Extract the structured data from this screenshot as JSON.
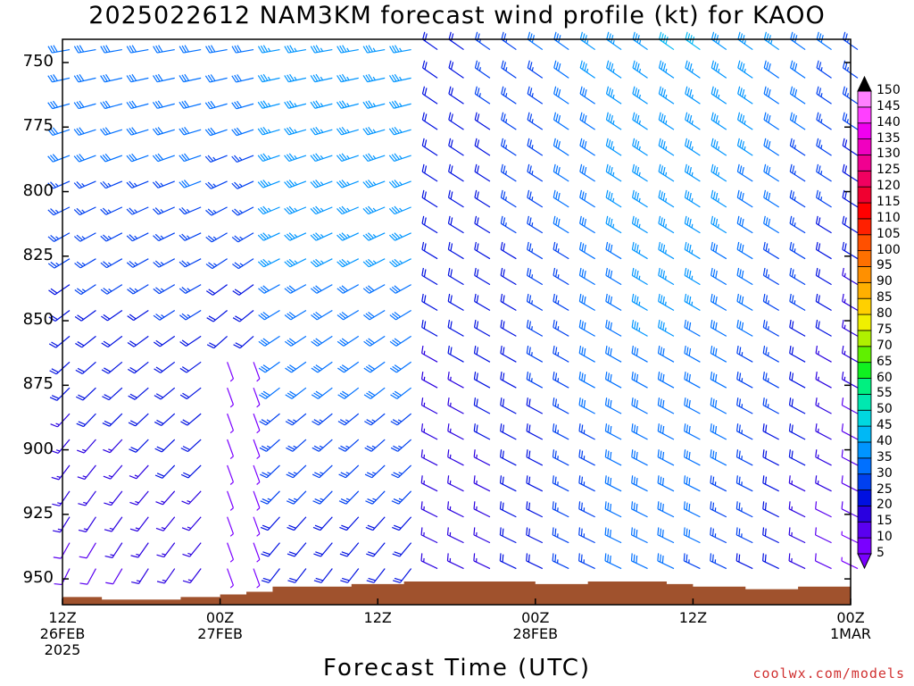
{
  "title": "2025022612 NAM3KM forecast wind profile (kt) for KAOO",
  "credit": "coolwx.com/models",
  "chart_data": {
    "type": "wind-barb-time-height",
    "title": "2025022612 NAM3KM forecast wind profile (kt) for KAOO",
    "xlabel": "Forecast Time (UTC)",
    "ylabel": "",
    "y_ticks": [
      750,
      775,
      800,
      825,
      850,
      875,
      900,
      925,
      950
    ],
    "ylim": [
      741,
      960
    ],
    "y_inverted": true,
    "x_range_hours": [
      0,
      60
    ],
    "x_ticks": [
      {
        "hour": 0,
        "lines": [
          "12Z",
          "26FEB",
          "2025"
        ]
      },
      {
        "hour": 12,
        "lines": [
          "00Z",
          "27FEB"
        ]
      },
      {
        "hour": 24,
        "lines": [
          "12Z"
        ]
      },
      {
        "hour": 36,
        "lines": [
          "00Z",
          "28FEB"
        ]
      },
      {
        "hour": 48,
        "lines": [
          "12Z"
        ]
      },
      {
        "hour": 60,
        "lines": [
          "00Z",
          "1MAR"
        ]
      }
    ],
    "time_step_hours": 1,
    "pressure_levels": [
      745,
      756,
      766,
      776,
      786,
      796,
      806,
      816,
      826,
      836,
      846,
      856,
      866,
      876,
      886,
      896,
      906,
      916,
      926,
      936,
      946
    ],
    "colorbar": {
      "ticks": [
        5,
        10,
        15,
        20,
        25,
        30,
        35,
        40,
        45,
        50,
        55,
        60,
        65,
        70,
        75,
        80,
        85,
        90,
        95,
        100,
        105,
        110,
        115,
        120,
        125,
        130,
        135,
        140,
        145,
        150
      ],
      "colors": [
        "#7a00ff",
        "#5a00f0",
        "#2a00e0",
        "#0010e0",
        "#0040f0",
        "#0070ff",
        "#0095ff",
        "#00b8f5",
        "#00d8e0",
        "#00e8b0",
        "#00f080",
        "#10f020",
        "#60f000",
        "#b0f000",
        "#f0f000",
        "#ffd000",
        "#ffb000",
        "#ff9000",
        "#ff7000",
        "#ff5000",
        "#ff2000",
        "#ff0000",
        "#f00030",
        "#f00060",
        "#f00090",
        "#f000c0",
        "#f000f0",
        "#ff40ff",
        "#ff80ff",
        "#000000"
      ]
    },
    "terrain_color": "#a0522d",
    "terrain_surface_pressure": [
      {
        "hour": 0,
        "p": 957
      },
      {
        "hour": 3,
        "p": 958
      },
      {
        "hour": 9,
        "p": 957
      },
      {
        "hour": 12,
        "p": 956
      },
      {
        "hour": 14,
        "p": 955
      },
      {
        "hour": 16,
        "p": 953
      },
      {
        "hour": 18,
        "p": 953
      },
      {
        "hour": 22,
        "p": 952
      },
      {
        "hour": 26,
        "p": 951
      },
      {
        "hour": 32,
        "p": 951
      },
      {
        "hour": 36,
        "p": 952
      },
      {
        "hour": 40,
        "p": 951
      },
      {
        "hour": 46,
        "p": 952
      },
      {
        "hour": 48,
        "p": 953
      },
      {
        "hour": 52,
        "p": 954
      },
      {
        "hour": 56,
        "p": 953
      },
      {
        "hour": 60,
        "p": 951
      }
    ],
    "wind_description": "Westerly to northwesterly winds aloft ~30-50 kt; light (5-15 kt) southerly to southwesterly winds in the lowest levels early, strengthening to 25-35 kt northwesterly after 00Z 28FEB."
  }
}
